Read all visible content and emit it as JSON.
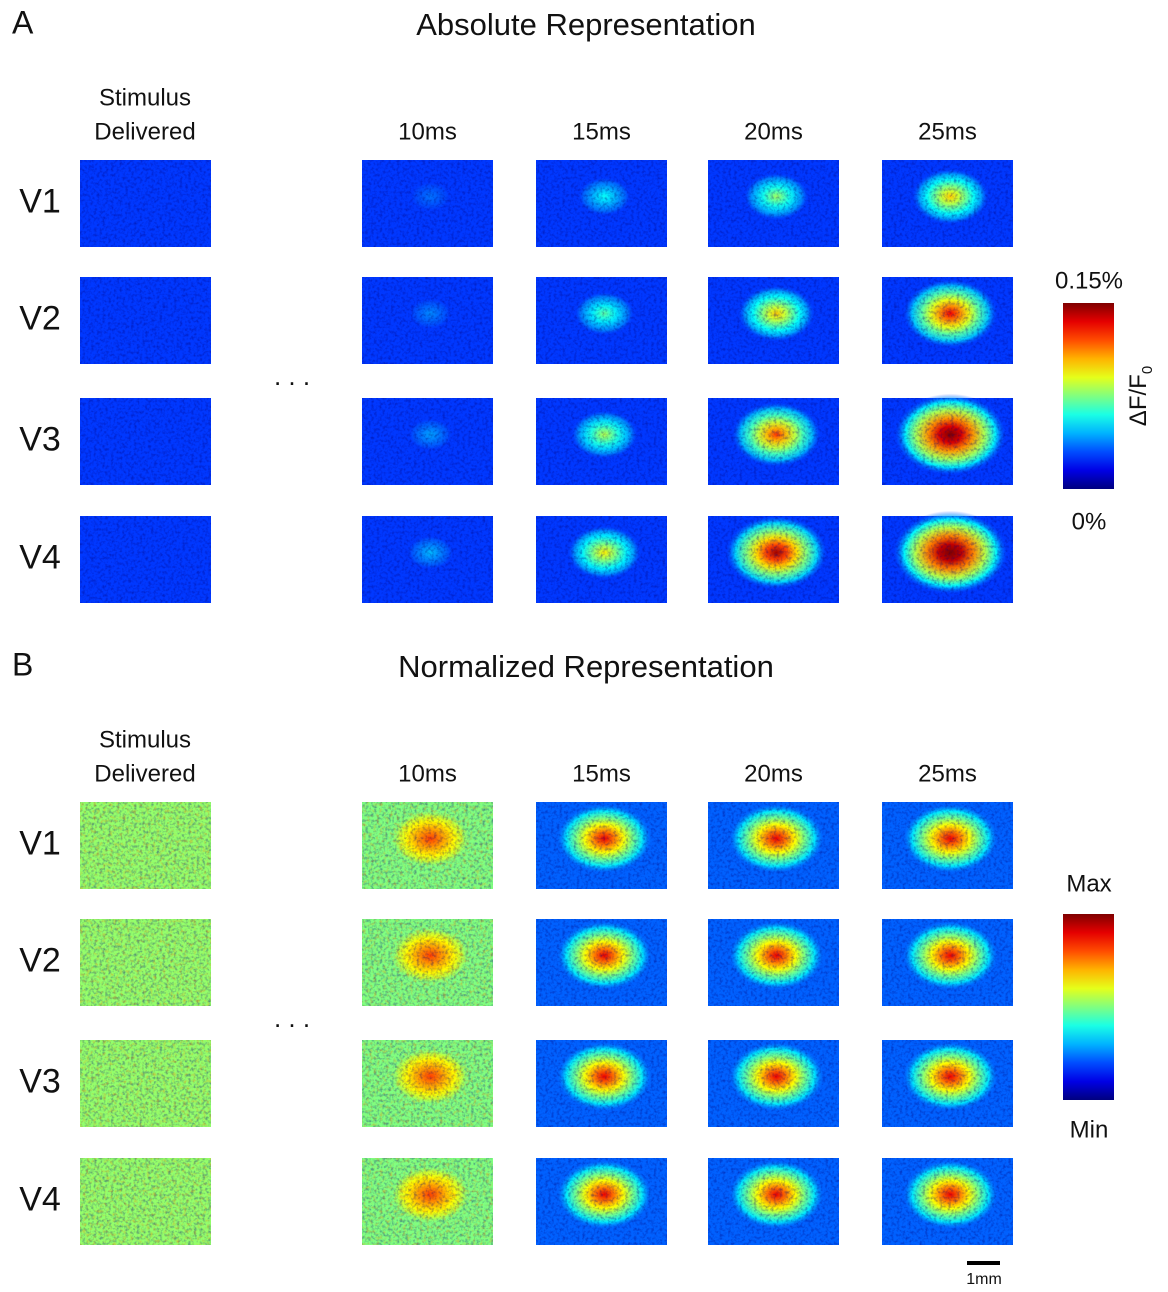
{
  "panels": [
    {
      "label": "A",
      "title": "Absolute Representation",
      "stimulus_header": [
        "Stimulus",
        "Delivered"
      ],
      "columns": [
        "10ms",
        "15ms",
        "20ms",
        "25ms"
      ],
      "rows": [
        "V1",
        "V2",
        "V3",
        "V4"
      ],
      "ellipsis": ". . .",
      "colorbar": {
        "max": "0.15%",
        "min": "0%",
        "axis_label": "ΔF/F",
        "axis_label_subscript": "0"
      }
    },
    {
      "label": "B",
      "title": "Normalized Representation",
      "stimulus_header": [
        "Stimulus",
        "Delivered"
      ],
      "columns": [
        "10ms",
        "15ms",
        "20ms",
        "25ms"
      ],
      "rows": [
        "V1",
        "V2",
        "V3",
        "V4"
      ],
      "ellipsis": ". . .",
      "colorbar": {
        "max": "Max",
        "min": "Min"
      }
    }
  ],
  "scale_bar": "1mm"
}
